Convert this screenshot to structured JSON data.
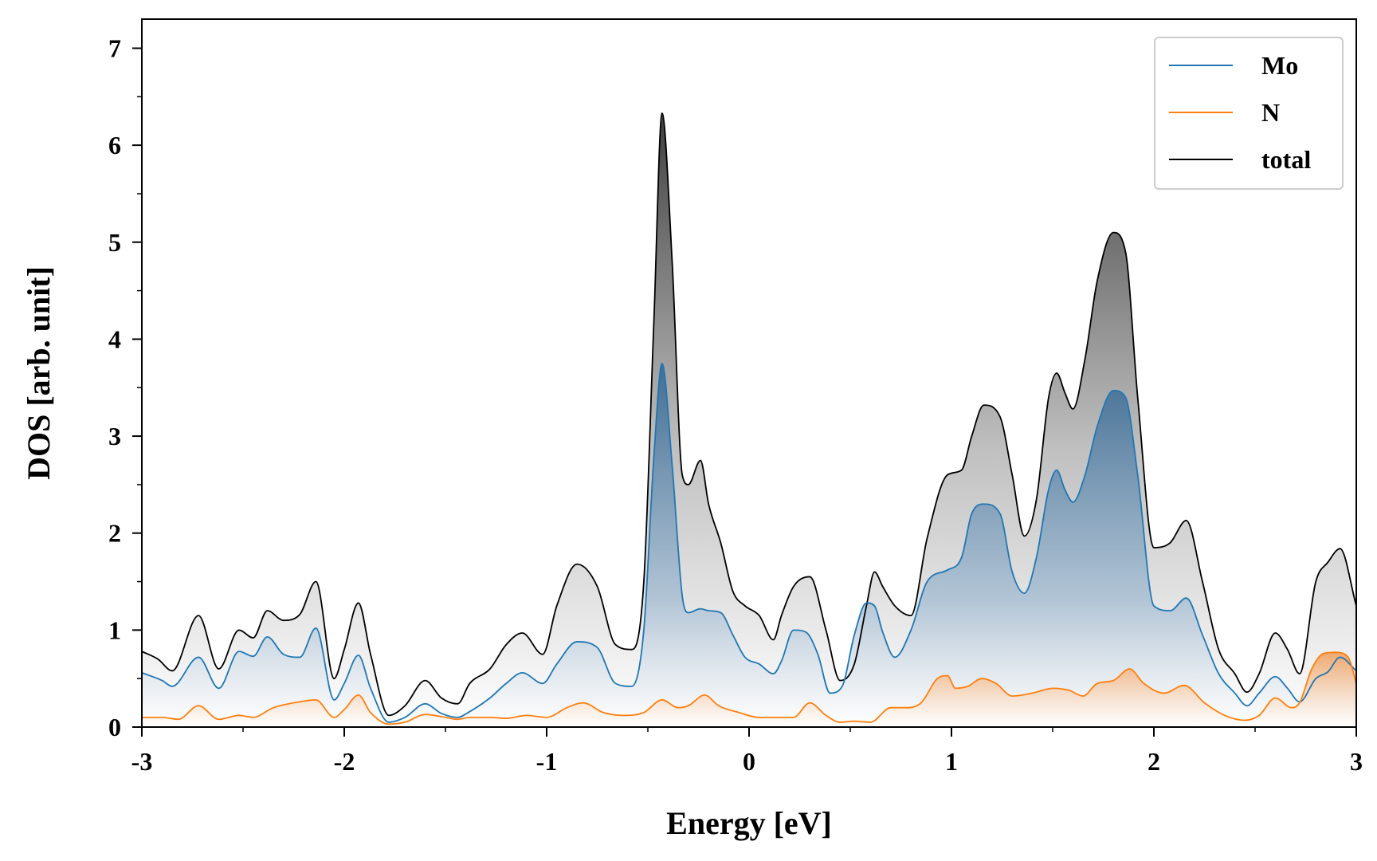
{
  "chart_data": {
    "type": "area",
    "xlabel": "Energy [eV]",
    "ylabel": "DOS [arb. unit]",
    "xlim": [
      -3,
      3
    ],
    "ylim": [
      0,
      7.3
    ],
    "x_ticks": [
      "-3",
      "-2",
      "-1",
      "0",
      "1",
      "2",
      "3"
    ],
    "y_ticks": [
      "0",
      "1",
      "2",
      "3",
      "4",
      "5",
      "6",
      "7"
    ],
    "legend_position": "top-right",
    "colors": {
      "Mo": "#1f77b4",
      "N": "#ff7f0e",
      "total": "#000000"
    },
    "series": [
      {
        "name": "total",
        "x": [
          -3.0,
          -2.92,
          -2.85,
          -2.72,
          -2.62,
          -2.52,
          -2.45,
          -2.38,
          -2.3,
          -2.22,
          -2.14,
          -2.05,
          -2.0,
          -1.93,
          -1.87,
          -1.78,
          -1.7,
          -1.6,
          -1.52,
          -1.44,
          -1.38,
          -1.28,
          -1.2,
          -1.12,
          -1.02,
          -0.95,
          -0.85,
          -0.75,
          -0.66,
          -0.58,
          -0.52,
          -0.47,
          -0.43,
          -0.38,
          -0.33,
          -0.3,
          -0.24,
          -0.2,
          -0.14,
          -0.08,
          -0.02,
          0.05,
          0.12,
          0.16,
          0.22,
          0.3,
          0.38,
          0.45,
          0.52,
          0.58,
          0.62,
          0.66,
          0.72,
          0.8,
          0.88,
          0.98,
          1.05,
          1.1,
          1.16,
          1.24,
          1.3,
          1.36,
          1.42,
          1.48,
          1.52,
          1.56,
          1.6,
          1.66,
          1.72,
          1.8,
          1.86,
          1.92,
          2.0,
          2.08,
          2.16,
          2.24,
          2.32,
          2.4,
          2.46,
          2.52,
          2.6,
          2.66,
          2.72,
          2.8,
          2.86,
          2.92,
          3.0
        ],
        "values": [
          0.78,
          0.7,
          0.58,
          1.15,
          0.6,
          1.0,
          0.92,
          1.2,
          1.1,
          1.16,
          1.5,
          0.5,
          0.8,
          1.28,
          0.75,
          0.12,
          0.22,
          0.48,
          0.3,
          0.24,
          0.45,
          0.6,
          0.85,
          0.97,
          0.75,
          1.25,
          1.68,
          1.45,
          0.85,
          0.8,
          1.5,
          4.2,
          6.33,
          4.8,
          2.6,
          2.5,
          2.75,
          2.3,
          1.9,
          1.4,
          1.25,
          1.15,
          0.9,
          1.15,
          1.45,
          1.55,
          1.0,
          0.48,
          0.65,
          1.25,
          1.6,
          1.45,
          1.25,
          1.15,
          1.95,
          2.6,
          2.65,
          3.0,
          3.32,
          3.2,
          2.6,
          1.97,
          2.35,
          3.4,
          3.65,
          3.45,
          3.28,
          3.8,
          4.6,
          5.1,
          4.9,
          3.4,
          1.85,
          1.9,
          2.13,
          1.5,
          0.8,
          0.55,
          0.36,
          0.55,
          0.97,
          0.8,
          0.55,
          1.5,
          1.7,
          1.84,
          1.25
        ]
      },
      {
        "name": "Mo",
        "x": [
          -3.0,
          -2.9,
          -2.85,
          -2.72,
          -2.62,
          -2.52,
          -2.45,
          -2.38,
          -2.3,
          -2.22,
          -2.14,
          -2.05,
          -2.0,
          -1.93,
          -1.87,
          -1.78,
          -1.7,
          -1.6,
          -1.52,
          -1.44,
          -1.38,
          -1.28,
          -1.2,
          -1.12,
          -1.02,
          -0.95,
          -0.85,
          -0.75,
          -0.66,
          -0.58,
          -0.52,
          -0.47,
          -0.43,
          -0.38,
          -0.33,
          -0.3,
          -0.24,
          -0.2,
          -0.14,
          -0.08,
          -0.02,
          0.05,
          0.12,
          0.16,
          0.22,
          0.28,
          0.34,
          0.4,
          0.46,
          0.52,
          0.58,
          0.62,
          0.66,
          0.72,
          0.8,
          0.88,
          0.98,
          1.05,
          1.1,
          1.16,
          1.24,
          1.3,
          1.36,
          1.42,
          1.48,
          1.52,
          1.56,
          1.6,
          1.66,
          1.72,
          1.8,
          1.86,
          1.92,
          2.0,
          2.08,
          2.16,
          2.24,
          2.32,
          2.4,
          2.46,
          2.52,
          2.6,
          2.66,
          2.72,
          2.8,
          2.86,
          2.92,
          3.0
        ],
        "values": [
          0.56,
          0.48,
          0.42,
          0.72,
          0.4,
          0.78,
          0.73,
          0.93,
          0.75,
          0.72,
          1.02,
          0.28,
          0.45,
          0.74,
          0.4,
          0.05,
          0.1,
          0.24,
          0.14,
          0.1,
          0.16,
          0.3,
          0.45,
          0.56,
          0.45,
          0.65,
          0.88,
          0.82,
          0.45,
          0.42,
          1.0,
          2.8,
          3.75,
          2.7,
          1.35,
          1.18,
          1.22,
          1.2,
          1.18,
          0.95,
          0.72,
          0.65,
          0.55,
          0.68,
          1.0,
          0.98,
          0.75,
          0.35,
          0.42,
          0.95,
          1.28,
          1.25,
          0.98,
          0.72,
          1.0,
          1.5,
          1.62,
          1.75,
          2.2,
          2.3,
          2.2,
          1.6,
          1.38,
          1.75,
          2.45,
          2.65,
          2.45,
          2.32,
          2.6,
          3.1,
          3.47,
          3.4,
          2.6,
          1.25,
          1.2,
          1.33,
          0.95,
          0.55,
          0.35,
          0.22,
          0.35,
          0.52,
          0.4,
          0.26,
          0.5,
          0.57,
          0.72,
          0.58
        ]
      },
      {
        "name": "N",
        "x": [
          -3.0,
          -2.9,
          -2.82,
          -2.72,
          -2.62,
          -2.52,
          -2.45,
          -2.35,
          -2.22,
          -2.14,
          -2.05,
          -2.0,
          -1.93,
          -1.87,
          -1.78,
          -1.7,
          -1.6,
          -1.5,
          -1.44,
          -1.38,
          -1.28,
          -1.2,
          -1.1,
          -1.0,
          -0.9,
          -0.82,
          -0.72,
          -0.62,
          -0.52,
          -0.43,
          -0.35,
          -0.3,
          -0.22,
          -0.15,
          -0.05,
          0.05,
          0.15,
          0.22,
          0.3,
          0.38,
          0.45,
          0.52,
          0.6,
          0.7,
          0.78,
          0.85,
          0.93,
          0.98,
          1.02,
          1.08,
          1.15,
          1.22,
          1.3,
          1.4,
          1.5,
          1.58,
          1.65,
          1.72,
          1.8,
          1.88,
          1.95,
          2.05,
          2.15,
          2.25,
          2.35,
          2.45,
          2.52,
          2.6,
          2.68,
          2.72,
          2.78,
          2.84,
          2.9,
          2.96,
          3.0
        ],
        "values": [
          0.1,
          0.1,
          0.08,
          0.22,
          0.08,
          0.12,
          0.1,
          0.2,
          0.26,
          0.28,
          0.1,
          0.18,
          0.33,
          0.15,
          0.03,
          0.05,
          0.13,
          0.1,
          0.08,
          0.1,
          0.1,
          0.09,
          0.12,
          0.1,
          0.2,
          0.25,
          0.15,
          0.12,
          0.15,
          0.28,
          0.2,
          0.22,
          0.33,
          0.22,
          0.15,
          0.1,
          0.1,
          0.1,
          0.25,
          0.12,
          0.05,
          0.06,
          0.05,
          0.2,
          0.2,
          0.25,
          0.5,
          0.53,
          0.4,
          0.42,
          0.5,
          0.45,
          0.32,
          0.35,
          0.4,
          0.38,
          0.32,
          0.45,
          0.48,
          0.6,
          0.45,
          0.35,
          0.43,
          0.25,
          0.12,
          0.07,
          0.12,
          0.3,
          0.2,
          0.25,
          0.6,
          0.76,
          0.77,
          0.72,
          0.45
        ]
      }
    ]
  }
}
